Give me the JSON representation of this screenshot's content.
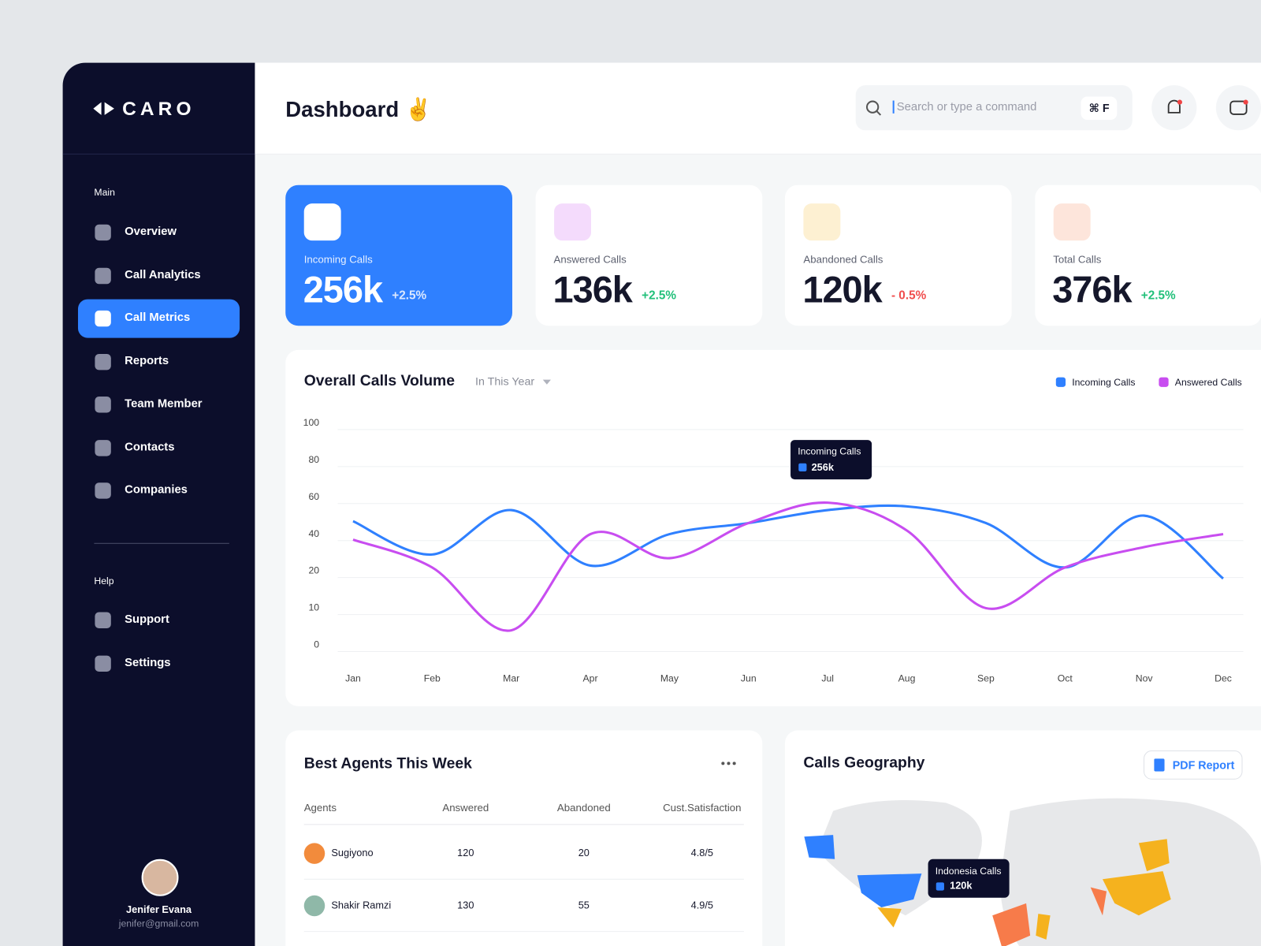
{
  "brand": "CARO",
  "header": {
    "title": "Dashboard ✌️",
    "search_placeholder": "Search or type a command",
    "shortcut": "⌘ F"
  },
  "sidebar": {
    "main_label": "Main",
    "main_items": [
      {
        "label": "Overview"
      },
      {
        "label": "Call Analytics"
      },
      {
        "label": "Call Metrics",
        "active": true
      },
      {
        "label": "Reports"
      },
      {
        "label": "Team Member"
      },
      {
        "label": "Contacts"
      },
      {
        "label": "Companies"
      }
    ],
    "help_label": "Help",
    "help_items": [
      {
        "label": "Support"
      },
      {
        "label": "Settings"
      }
    ],
    "user": {
      "name": "Jenifer Evana",
      "email": "jenifer@gmail.com"
    }
  },
  "stats": [
    {
      "label": "Incoming Calls",
      "value": "256k",
      "change": "+2.5%",
      "trend": "up",
      "color": "#2f80ff"
    },
    {
      "label": "Answered Calls",
      "value": "136k",
      "change": "+2.5%",
      "trend": "up",
      "color": "#c84df0"
    },
    {
      "label": "Abandoned Calls",
      "value": "120k",
      "change": "- 0.5%",
      "trend": "down",
      "color": "#f5b21e"
    },
    {
      "label": "Total Calls",
      "value": "376k",
      "change": "+2.5%",
      "trend": "up",
      "color": "#f77b4a"
    }
  ],
  "chart_data": {
    "type": "line",
    "title": "Overall Calls Volume",
    "filter": "In This Year",
    "categories": [
      "Jan",
      "Feb",
      "Mar",
      "Apr",
      "May",
      "Jun",
      "Jul",
      "Aug",
      "Sep",
      "Oct",
      "Nov",
      "Dec"
    ],
    "series": [
      {
        "name": "Incoming Calls",
        "color": "#2f80ff",
        "values": [
          47,
          29,
          53,
          23,
          40,
          46,
          53,
          55,
          46,
          22,
          50,
          18
        ]
      },
      {
        "name": "Answered Calls",
        "color": "#c84df0",
        "values": [
          37,
          22,
          4,
          40,
          27,
          46,
          57,
          42,
          10,
          22,
          33,
          40
        ]
      }
    ],
    "ylim": [
      0,
      100
    ],
    "yticks": [
      0,
      10,
      20,
      40,
      60,
      80,
      100
    ],
    "grid": true,
    "tooltip": {
      "series": "Incoming Calls",
      "value": "256k"
    }
  },
  "agents": {
    "title": "Best Agents This Week",
    "columns": [
      "Agents",
      "Answered",
      "Abandoned",
      "Cust.Satisfaction"
    ],
    "rows": [
      [
        "Sugiyono",
        120,
        20,
        "4.8/5"
      ],
      [
        "Shakir Ramzi",
        130,
        55,
        "4.9/5"
      ]
    ]
  },
  "geography": {
    "title": "Calls Geography",
    "button": "PDF Report",
    "tooltip": {
      "label": "Indonesia Calls",
      "value": "120k"
    }
  }
}
